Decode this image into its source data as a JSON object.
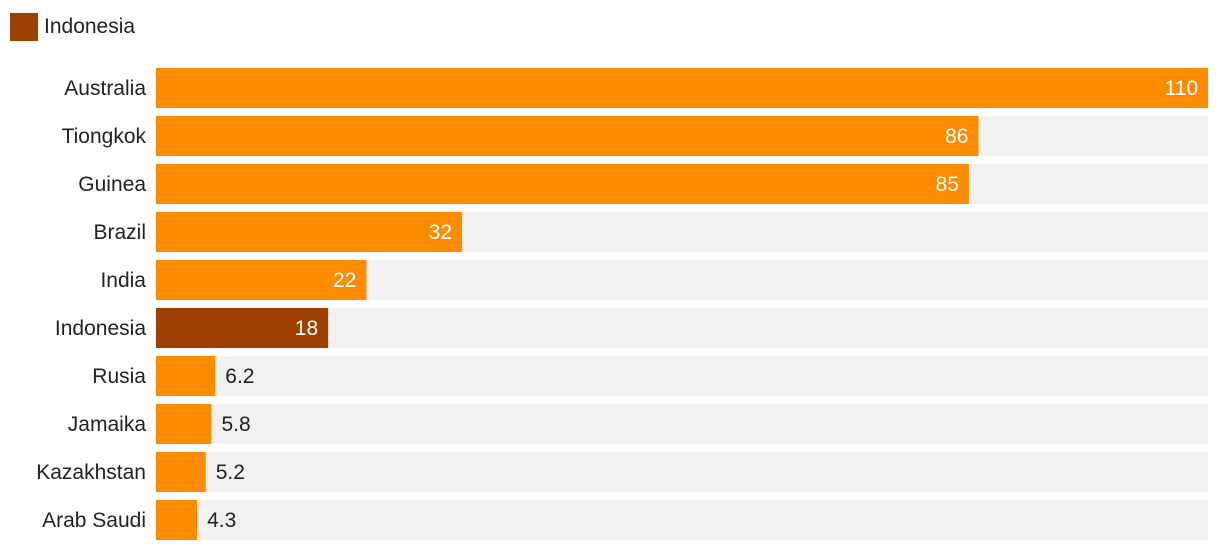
{
  "legend": {
    "label": "Indonesia",
    "color": "#a04000"
  },
  "colors": {
    "bar": "#fb8c00",
    "highlight": "#a04000",
    "track": "#f1f1f1",
    "label_inside": "#ffffff",
    "label_outside": "#222222"
  },
  "chart_data": {
    "type": "bar",
    "orientation": "horizontal",
    "categories": [
      "Australia",
      "Tiongkok",
      "Guinea",
      "Brazil",
      "India",
      "Indonesia",
      "Rusia",
      "Jamaika",
      "Kazakhstan",
      "Arab Saudi"
    ],
    "values": [
      110,
      86,
      85,
      32,
      22,
      18,
      6.2,
      5.8,
      5.2,
      4.3
    ],
    "value_labels": [
      "110",
      "86",
      "85",
      "32",
      "22",
      "18",
      "6.2",
      "5.8",
      "5.2",
      "4.3"
    ],
    "highlight": "Indonesia",
    "xlim": [
      0,
      110
    ],
    "grid": false,
    "legend_position": "top-left"
  }
}
